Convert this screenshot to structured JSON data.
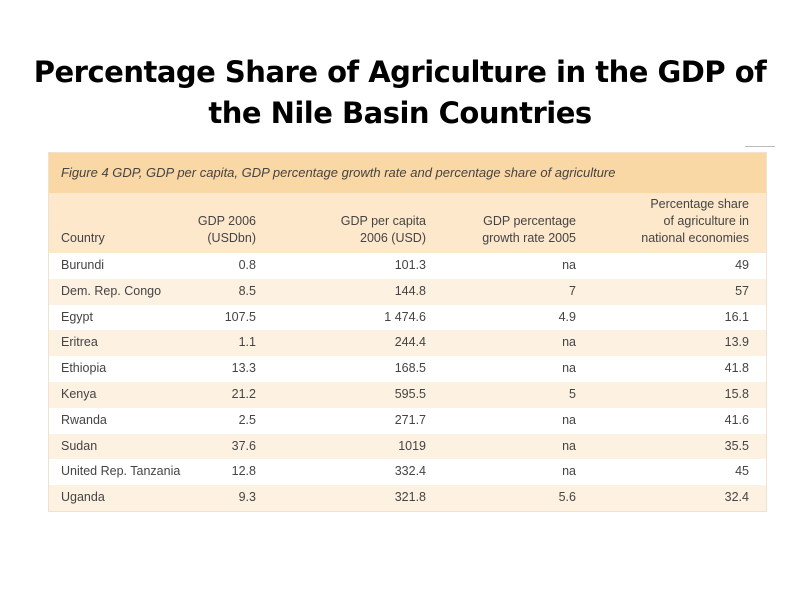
{
  "slide_title_line1": "Percentage Share of Agriculture in the GDP of",
  "slide_title_line2": "the Nile Basin Countries",
  "table": {
    "caption": "Figure 4 GDP, GDP per capita, GDP percentage growth rate and percentage share of agriculture",
    "headers": [
      "Country",
      "GDP 2006\n(USDbn)",
      "GDP per capita\n2006 (USD)",
      "GDP percentage\ngrowth rate 2005",
      "Percentage share\nof agriculture in\nnational economies"
    ],
    "rows": [
      [
        "Burundi",
        "0.8",
        "101.3",
        "na",
        "49"
      ],
      [
        "Dem. Rep. Congo",
        "8.5",
        "144.8",
        "7",
        "57"
      ],
      [
        "Egypt",
        "107.5",
        "1 474.6",
        "4.9",
        "16.1"
      ],
      [
        "Eritrea",
        "1.1",
        "244.4",
        "na",
        "13.9"
      ],
      [
        "Ethiopia",
        "13.3",
        "168.5",
        "na",
        "41.8"
      ],
      [
        "Kenya",
        "21.2",
        "595.5",
        "5",
        "15.8"
      ],
      [
        "Rwanda",
        "2.5",
        "271.7",
        "na",
        "41.6"
      ],
      [
        "Sudan",
        "37.6",
        "1019",
        "na",
        "35.5"
      ],
      [
        "United Rep. Tanzania",
        "12.8",
        "332.4",
        "na",
        "45"
      ],
      [
        "Uganda",
        "9.3",
        "321.8",
        "5.6",
        "32.4"
      ]
    ]
  }
}
